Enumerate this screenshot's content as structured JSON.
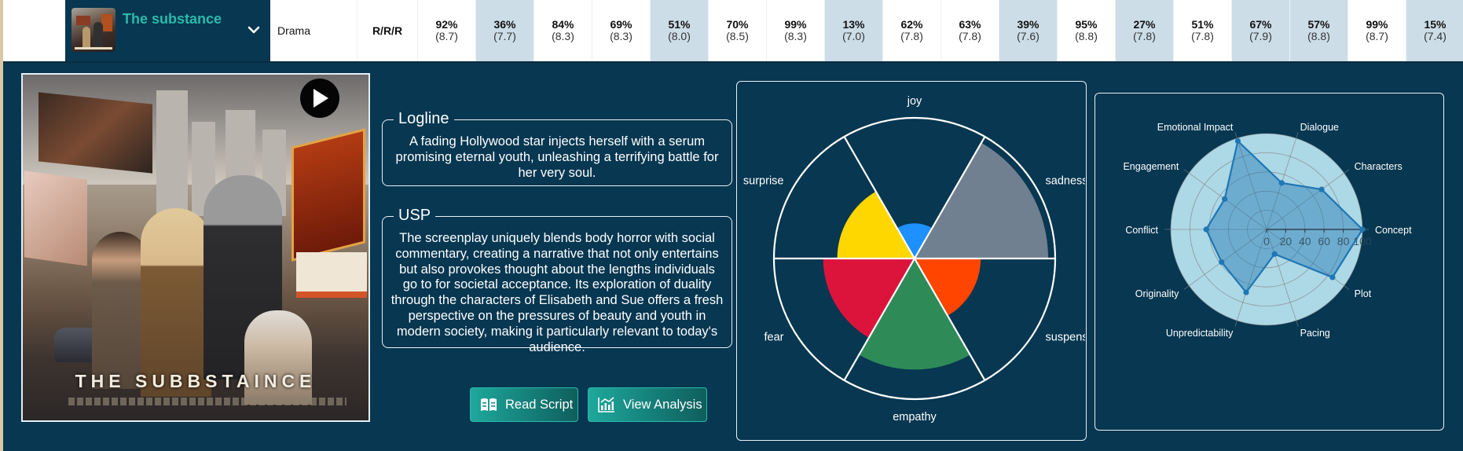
{
  "row": {
    "title": "The substance",
    "genre": "Drama",
    "rating": "R/R/R",
    "scores": [
      {
        "pct": "92%",
        "val": "(8.7)",
        "highlight": false
      },
      {
        "pct": "36%",
        "val": "(7.7)",
        "highlight": true
      },
      {
        "pct": "84%",
        "val": "(8.3)",
        "highlight": false
      },
      {
        "pct": "69%",
        "val": "(8.3)",
        "highlight": false
      },
      {
        "pct": "51%",
        "val": "(8.0)",
        "highlight": true
      },
      {
        "pct": "70%",
        "val": "(8.5)",
        "highlight": false
      },
      {
        "pct": "99%",
        "val": "(8.3)",
        "highlight": false
      },
      {
        "pct": "13%",
        "val": "(7.0)",
        "highlight": true
      },
      {
        "pct": "62%",
        "val": "(7.8)",
        "highlight": false
      },
      {
        "pct": "63%",
        "val": "(7.8)",
        "highlight": false
      },
      {
        "pct": "39%",
        "val": "(7.6)",
        "highlight": true
      },
      {
        "pct": "95%",
        "val": "(8.8)",
        "highlight": false
      },
      {
        "pct": "27%",
        "val": "(7.8)",
        "highlight": true
      },
      {
        "pct": "51%",
        "val": "(7.8)",
        "highlight": false
      },
      {
        "pct": "67%",
        "val": "(7.9)",
        "highlight": true
      },
      {
        "pct": "57%",
        "val": "(8.8)",
        "highlight": true
      },
      {
        "pct": "99%",
        "val": "(8.7)",
        "highlight": false
      },
      {
        "pct": "15%",
        "val": "(7.4)",
        "highlight": true
      }
    ]
  },
  "poster": {
    "title_art": "THE SUBBSTAINCE",
    "play_icon": "play-icon"
  },
  "logline": {
    "label": "Logline",
    "text": "A fading Hollywood star injects herself with a serum promising eternal youth, unleashing a terrifying battle for her very soul."
  },
  "usp": {
    "label": "USP",
    "text": "The screenplay uniquely blends body horror with social commentary, creating a narrative that not only entertains but also provokes thought about the lengths individuals go to for societal acceptance. Its exploration of duality through the characters of Elisabeth and Sue offers a fresh perspective on the pressures of beauty and youth in modern society, making it particularly relevant to today's audience."
  },
  "buttons": {
    "read_script": "Read Script",
    "view_analysis": "View Analysis"
  },
  "colors": {
    "panel_bg": "#073751",
    "accent": "#2bb9ac",
    "highlight_cell": "#ccdde7"
  },
  "chart_data": [
    {
      "type": "polarArea",
      "title": "",
      "categories": [
        "joy",
        "sadness",
        "suspense",
        "empathy",
        "fear",
        "surprise"
      ],
      "values": [
        0.25,
        0.95,
        0.47,
        0.79,
        0.65,
        0.55
      ],
      "colors": [
        "#1e90ff",
        "#708090",
        "#ff4500",
        "#2e8b57",
        "#dc143c",
        "#ffd700"
      ],
      "rlim": [
        0,
        1
      ],
      "grid": false
    },
    {
      "type": "radar",
      "title": "",
      "categories": [
        "Concept",
        "Characters",
        "Dialogue",
        "Emotional Impact",
        "Engagement",
        "Conflict",
        "Originality",
        "Unpredictability",
        "Pacing",
        "Plot"
      ],
      "values": [
        100,
        71,
        51,
        97,
        54,
        63,
        58,
        69,
        27,
        85
      ],
      "rlim": [
        0,
        100
      ],
      "ticks": [
        "0",
        "20",
        "40",
        "60",
        "80",
        "100"
      ],
      "grid": true,
      "series_color": "#1f77b4"
    }
  ]
}
